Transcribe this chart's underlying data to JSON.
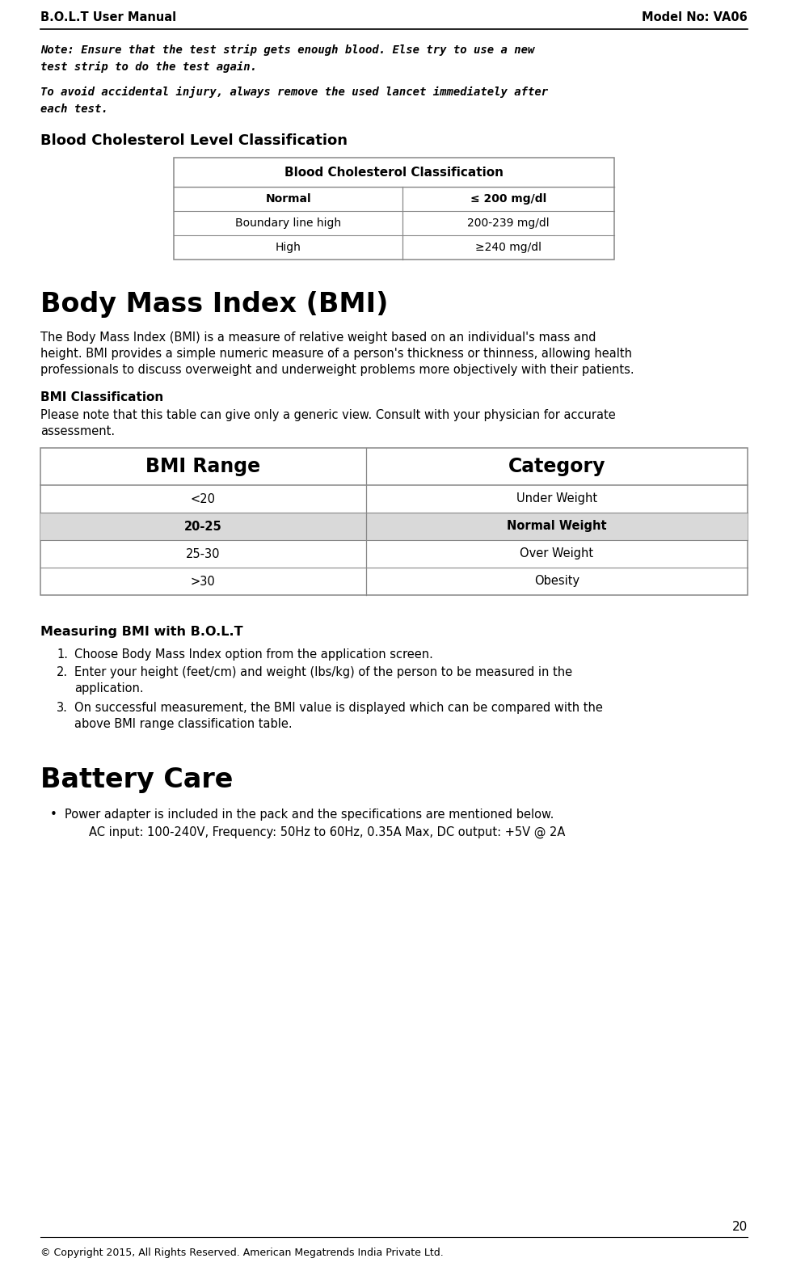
{
  "header_left": "B.O.L.T User Manual",
  "header_right": "Model No: VA06",
  "page_num": "20",
  "footer": "© Copyright 2015, All Rights Reserved. American Megatrends India Private Ltd.",
  "note1_line1": "Note: Ensure that the test strip gets enough blood. Else try to use a new",
  "note1_line2": "test strip to do the test again.",
  "note2_line1": "To avoid accidental injury, always remove the used lancet immediately after",
  "note2_line2": "each test.",
  "chol_section_title": "Blood Cholesterol Level Classification",
  "chol_table_header": "Blood Cholesterol Classification",
  "chol_rows": [
    [
      "Normal",
      "≤ 200 mg/dl",
      true
    ],
    [
      "Boundary line high",
      "200-239 mg/dl",
      false
    ],
    [
      "High",
      "≥240 mg/dl",
      false
    ]
  ],
  "bmi_title": "Body Mass Index (BMI)",
  "bmi_intro_line1": "The Body Mass Index (BMI) is a measure of relative weight based on an individual's mass and",
  "bmi_intro_line2": "height. BMI provides a simple numeric measure of a person's thickness or thinness, allowing health",
  "bmi_intro_line3": "professionals to discuss overweight and underweight problems more objectively with their patients.",
  "bmi_class_title": "BMI Classification",
  "bmi_class_note_line1": "Please note that this table can give only a generic view. Consult with your physician for accurate",
  "bmi_class_note_line2": "assessment.",
  "bmi_table_headers": [
    "BMI Range",
    "Category"
  ],
  "bmi_rows": [
    [
      "<20",
      "Under Weight",
      false
    ],
    [
      "20-25",
      "Normal Weight",
      true
    ],
    [
      "25-30",
      "Over Weight",
      false
    ],
    [
      ">30",
      "Obesity",
      false
    ]
  ],
  "measuring_title": "Measuring BMI with B.O.L.T",
  "step1": "Choose Body Mass Index option from the application screen.",
  "step2_line1": "Enter your height (feet/cm) and weight (lbs/kg) of the person to be measured in the",
  "step2_line2": "application.",
  "step3_line1": "On successful measurement, the BMI value is displayed which can be compared with the",
  "step3_line2": "above BMI range classification table.",
  "battery_title": "Battery Care",
  "battery_bullet": "Power adapter is included in the pack and the specifications are mentioned below.",
  "battery_sub": "AC input: 100-240V, Frequency: 50Hz to 60Hz, 0.35A Max, DC output: +5V @ 2A",
  "bg_color": "#ffffff",
  "text_color": "#000000",
  "table_border_color": "#888888",
  "highlight_color": "#d9d9d9"
}
